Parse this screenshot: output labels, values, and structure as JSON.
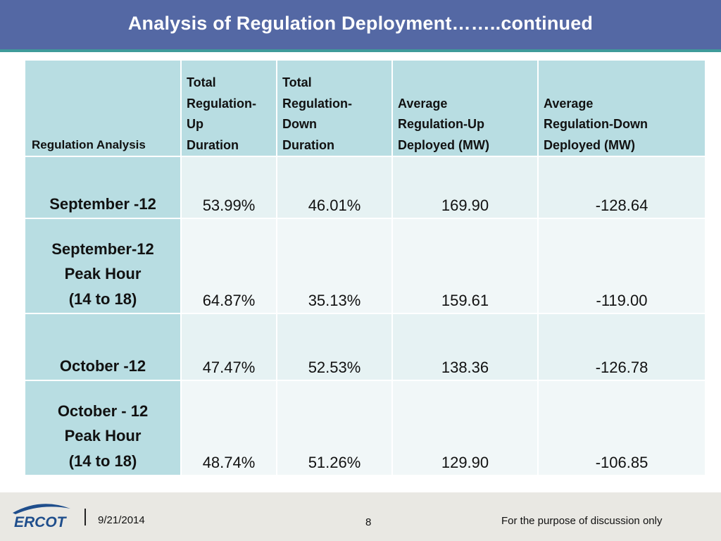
{
  "slide": {
    "title": "Analysis of Regulation Deployment……..continued"
  },
  "table": {
    "headers": [
      "Regulation Analysis",
      "Total\nRegulation-\nUp\nDuration",
      "Total\nRegulation-\nDown\nDuration",
      "Average\nRegulation-Up\nDeployed (MW)",
      "Average\n Regulation-Down\nDeployed (MW)"
    ],
    "rows": [
      {
        "label": "September -12",
        "up_duration": "53.99%",
        "down_duration": "46.01%",
        "avg_up": "169.90",
        "avg_down": "-128.64"
      },
      {
        "label": "September-12\nPeak Hour\n(14 to 18)",
        "up_duration": "64.87%",
        "down_duration": "35.13%",
        "avg_up": "159.61",
        "avg_down": "-119.00"
      },
      {
        "label": "October -12",
        "up_duration": "47.47%",
        "down_duration": "52.53%",
        "avg_up": "138.36",
        "avg_down": "-126.78"
      },
      {
        "label": "October - 12\nPeak Hour\n(14 to 18)",
        "up_duration": "48.74%",
        "down_duration": "51.26%",
        "avg_up": "129.90",
        "avg_down": "-106.85"
      }
    ]
  },
  "footer": {
    "logo_text": "ERCOT",
    "date": "9/21/2014",
    "page_number": "8",
    "note": "For the purpose of discussion only"
  },
  "colors": {
    "title_bar": "#5468a4",
    "title_underline": "#3f9b9a",
    "header_cell": "#b8dde2",
    "row_band_odd": "#e6f2f3",
    "row_band_even": "#f1f7f8",
    "footer_band": "#e9e8e3",
    "logo_blue": "#1f4e8c"
  }
}
